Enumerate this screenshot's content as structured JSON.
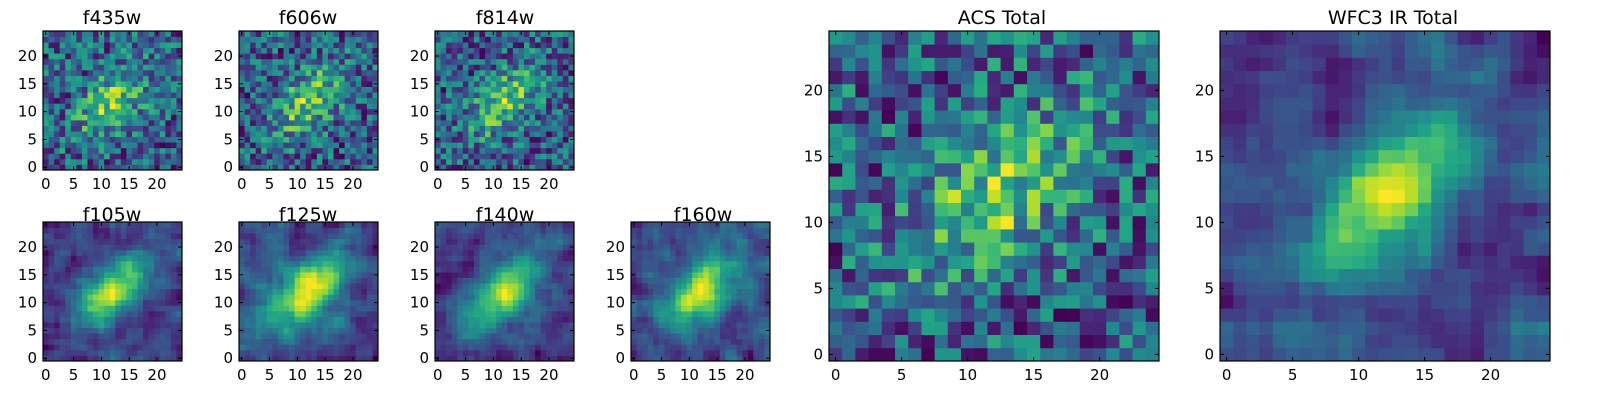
{
  "figure": {
    "panels": [
      {
        "title": "f435w",
        "pattern": "noise",
        "seed": 11
      },
      {
        "title": "f606w",
        "pattern": "noise",
        "seed": 23
      },
      {
        "title": "f814w",
        "pattern": "noise",
        "seed": 37
      },
      {
        "title": "f105w",
        "pattern": "smooth",
        "seed": 41
      },
      {
        "title": "f125w",
        "pattern": "smooth",
        "seed": 53
      },
      {
        "title": "f140w",
        "pattern": "smooth",
        "seed": 67
      },
      {
        "title": "f160w",
        "pattern": "smooth",
        "seed": 79
      },
      {
        "title": "ACS Total",
        "pattern": "noise",
        "seed": 91
      },
      {
        "title": "WFC3 IR Total",
        "pattern": "smooth",
        "seed": 103
      }
    ]
  },
  "chart_data": [
    {
      "type": "heatmap",
      "title": "f435w",
      "grid": [
        25,
        25
      ],
      "xlim": [
        0,
        24
      ],
      "ylim": [
        0,
        24
      ],
      "xticks": [
        0,
        5,
        10,
        15,
        20
      ],
      "yticks": [
        0,
        5,
        10,
        15,
        20
      ],
      "colormap": "viridis"
    },
    {
      "type": "heatmap",
      "title": "f606w",
      "grid": [
        25,
        25
      ],
      "xlim": [
        0,
        24
      ],
      "ylim": [
        0,
        24
      ],
      "xticks": [
        0,
        5,
        10,
        15,
        20
      ],
      "yticks": [
        0,
        5,
        10,
        15,
        20
      ],
      "colormap": "viridis"
    },
    {
      "type": "heatmap",
      "title": "f814w",
      "grid": [
        25,
        25
      ],
      "xlim": [
        0,
        24
      ],
      "ylim": [
        0,
        24
      ],
      "xticks": [
        0,
        5,
        10,
        15,
        20
      ],
      "yticks": [
        0,
        5,
        10,
        15,
        20
      ],
      "colormap": "viridis"
    },
    {
      "type": "heatmap",
      "title": "f105w",
      "grid": [
        25,
        25
      ],
      "xlim": [
        0,
        24
      ],
      "ylim": [
        0,
        24
      ],
      "xticks": [
        0,
        5,
        10,
        15,
        20
      ],
      "yticks": [
        0,
        5,
        10,
        15,
        20
      ],
      "colormap": "viridis"
    },
    {
      "type": "heatmap",
      "title": "f125w",
      "grid": [
        25,
        25
      ],
      "xlim": [
        0,
        24
      ],
      "ylim": [
        0,
        24
      ],
      "xticks": [
        0,
        5,
        10,
        15,
        20
      ],
      "yticks": [
        0,
        5,
        10,
        15,
        20
      ],
      "colormap": "viridis"
    },
    {
      "type": "heatmap",
      "title": "f140w",
      "grid": [
        25,
        25
      ],
      "xlim": [
        0,
        24
      ],
      "ylim": [
        0,
        24
      ],
      "xticks": [
        0,
        5,
        10,
        15,
        20
      ],
      "yticks": [
        0,
        5,
        10,
        15,
        20
      ],
      "colormap": "viridis"
    },
    {
      "type": "heatmap",
      "title": "f160w",
      "grid": [
        25,
        25
      ],
      "xlim": [
        0,
        24
      ],
      "ylim": [
        0,
        24
      ],
      "xticks": [
        0,
        5,
        10,
        15,
        20
      ],
      "yticks": [
        0,
        5,
        10,
        15,
        20
      ],
      "colormap": "viridis"
    },
    {
      "type": "heatmap",
      "title": "ACS Total",
      "grid": [
        25,
        25
      ],
      "xlim": [
        0,
        24
      ],
      "ylim": [
        0,
        24
      ],
      "xticks": [
        0,
        5,
        10,
        15,
        20
      ],
      "yticks": [
        0,
        5,
        10,
        15,
        20
      ],
      "colormap": "viridis"
    },
    {
      "type": "heatmap",
      "title": "WFC3 IR Total",
      "grid": [
        25,
        25
      ],
      "xlim": [
        0,
        24
      ],
      "ylim": [
        0,
        24
      ],
      "xticks": [
        0,
        5,
        10,
        15,
        20
      ],
      "yticks": [
        0,
        5,
        10,
        15,
        20
      ],
      "colormap": "viridis"
    }
  ]
}
